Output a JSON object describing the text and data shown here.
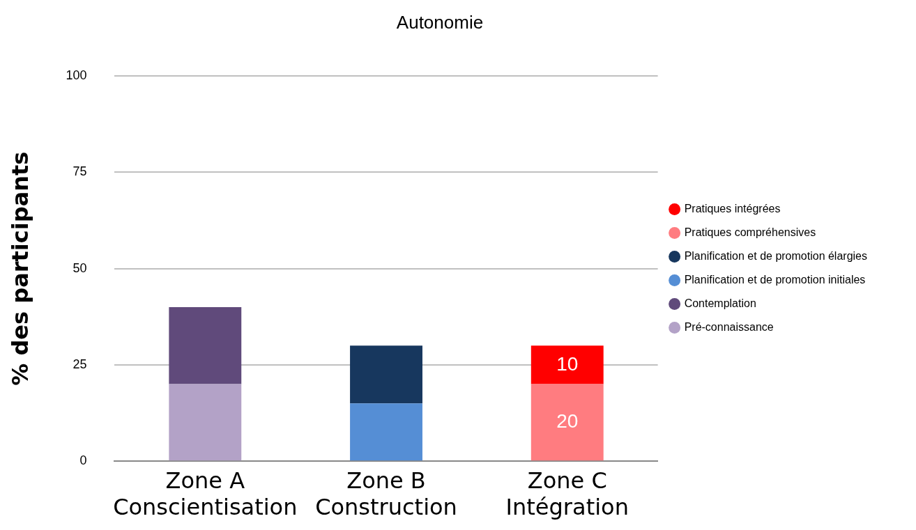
{
  "chart_data": {
    "type": "bar",
    "title": "Autonomie",
    "ylabel": "% des participants",
    "stacked": true,
    "categories": [
      "Zone A\nConscientisation",
      "Zone B\nConstruction",
      "Zone C\nIntégration"
    ],
    "series": [
      {
        "name": "Pré-connaissance",
        "color": "#b3a2c7",
        "values": [
          20,
          null,
          null
        ]
      },
      {
        "name": "Contemplation",
        "color": "#604a7b",
        "values": [
          20,
          null,
          null
        ]
      },
      {
        "name": "Planification et de promotion initiales",
        "color": "#558ed5",
        "values": [
          null,
          15,
          null
        ]
      },
      {
        "name": "Planification et de promotion élargies",
        "color": "#17375e",
        "values": [
          null,
          15,
          null
        ]
      },
      {
        "name": "Pratiques compréhensives",
        "color": "#ff7c80",
        "values": [
          null,
          null,
          20
        ],
        "value_labels": [
          null,
          null,
          "20"
        ]
      },
      {
        "name": "Pratiques intégrées",
        "color": "#ff0000",
        "values": [
          null,
          null,
          10
        ],
        "value_labels": [
          null,
          null,
          "10"
        ]
      }
    ],
    "ylim": [
      0,
      100
    ],
    "yticks": [
      0,
      25,
      50,
      75,
      100
    ],
    "grid": "y",
    "legend": "right"
  }
}
